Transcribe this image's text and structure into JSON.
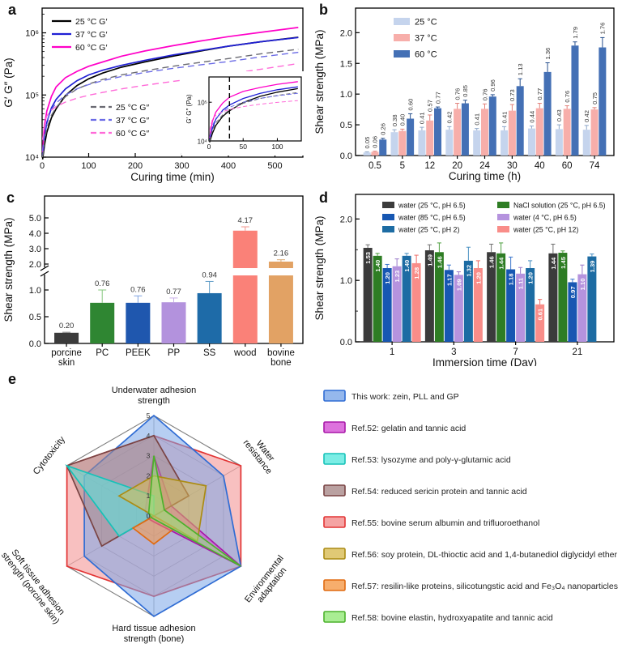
{
  "panels": [
    {
      "label": "a"
    },
    {
      "label": "b"
    },
    {
      "label": "c"
    },
    {
      "label": "d"
    },
    {
      "label": "e"
    }
  ],
  "chart_data": [
    {
      "panel": "a",
      "type": "line",
      "xlabel": "Curing time (min)",
      "ylabel": "G′ G″ (Pa)",
      "xlim": [
        0,
        560
      ],
      "xticks": [
        0,
        100,
        200,
        300,
        400,
        500
      ],
      "ylog": true,
      "ylim": [
        10000,
        2500000
      ],
      "ytick_labels": [
        "10⁴",
        "10⁵",
        "10⁶"
      ],
      "legend_solid": [
        "25 °C G′",
        "37 °C G′",
        "60 °C G′"
      ],
      "legend_dashed": [
        "25 °C G″",
        "37 °C G″",
        "60 °C G″"
      ],
      "series": [
        {
          "name": "25 °C G′",
          "color": "#000000",
          "dashed": false,
          "points": [
            [
              1,
              9200
            ],
            [
              5,
              15500
            ],
            [
              10,
              25000
            ],
            [
              20,
              43000
            ],
            [
              30,
              60000
            ],
            [
              50,
              98000
            ],
            [
              75,
              142000
            ],
            [
              100,
              182000
            ],
            [
              130,
              225000
            ],
            [
              170,
              280000
            ],
            [
              220,
              340000
            ],
            [
              280,
              420000
            ],
            [
              340,
              510000
            ],
            [
              400,
              610000
            ],
            [
              470,
              720000
            ],
            [
              550,
              850000
            ]
          ]
        },
        {
          "name": "37 °C G′",
          "color": "#1f1fd4",
          "dashed": false,
          "points": [
            [
              1,
              10500
            ],
            [
              5,
              21000
            ],
            [
              10,
              36000
            ],
            [
              20,
              62000
            ],
            [
              30,
              85000
            ],
            [
              50,
              125000
            ],
            [
              75,
              170000
            ],
            [
              100,
              210000
            ],
            [
              130,
              250000
            ],
            [
              170,
              300000
            ],
            [
              220,
              360000
            ],
            [
              280,
              440000
            ],
            [
              340,
              520000
            ],
            [
              400,
              610000
            ],
            [
              470,
              720000
            ],
            [
              550,
              840000
            ]
          ]
        },
        {
          "name": "60 °C G′",
          "color": "#ff00c8",
          "dashed": false,
          "points": [
            [
              1,
              12000
            ],
            [
              5,
              32000
            ],
            [
              10,
              55000
            ],
            [
              20,
              95000
            ],
            [
              30,
              135000
            ],
            [
              50,
              190000
            ],
            [
              75,
              240000
            ],
            [
              100,
              290000
            ],
            [
              130,
              340000
            ],
            [
              170,
              420000
            ],
            [
              220,
              510000
            ],
            [
              280,
              620000
            ],
            [
              340,
              740000
            ],
            [
              400,
              870000
            ],
            [
              470,
              1020000
            ],
            [
              550,
              1220000
            ]
          ]
        },
        {
          "name": "25 °C G″",
          "color": "#6a6a72",
          "dashed": true,
          "points": [
            [
              1,
              10000
            ],
            [
              5,
              18500
            ],
            [
              10,
              29000
            ],
            [
              20,
              47000
            ],
            [
              30,
              63000
            ],
            [
              50,
              94000
            ],
            [
              75,
              125000
            ],
            [
              100,
              150000
            ],
            [
              130,
              178000
            ],
            [
              170,
              210000
            ],
            [
              220,
              245000
            ],
            [
              280,
              290000
            ],
            [
              340,
              335000
            ],
            [
              400,
              385000
            ],
            [
              470,
              460000
            ],
            [
              550,
              545000
            ]
          ]
        },
        {
          "name": "37 °C G″",
          "color": "#6b6be6",
          "dashed": true,
          "points": [
            [
              1,
              12500
            ],
            [
              5,
              25000
            ],
            [
              10,
              38000
            ],
            [
              20,
              58000
            ],
            [
              30,
              74000
            ],
            [
              50,
              100000
            ],
            [
              75,
              126000
            ],
            [
              100,
              147000
            ],
            [
              130,
              170000
            ],
            [
              170,
              198000
            ],
            [
              220,
              230000
            ],
            [
              280,
              268000
            ],
            [
              340,
              305000
            ],
            [
              400,
              345000
            ],
            [
              470,
              410000
            ],
            [
              550,
              485000
            ]
          ]
        },
        {
          "name": "60 °C G″",
          "color": "#ff6ad8",
          "dashed": true,
          "points": [
            [
              1,
              19000
            ],
            [
              5,
              36000
            ],
            [
              10,
              46000
            ],
            [
              20,
              57000
            ],
            [
              30,
              65000
            ],
            [
              50,
              77000
            ],
            [
              75,
              89000
            ],
            [
              100,
              99000
            ],
            [
              130,
              110000
            ],
            [
              170,
              125000
            ],
            [
              220,
              143000
            ],
            [
              280,
              165000
            ],
            [
              340,
              190000
            ],
            [
              400,
              218000
            ],
            [
              470,
              260000
            ],
            [
              550,
              320000
            ]
          ]
        }
      ],
      "inset": {
        "xticks": [
          0,
          50,
          100
        ],
        "ytick_labels": [
          "10⁴",
          "10⁵"
        ],
        "ylabel": "G′ G″ (Pa)",
        "vline_x": 30,
        "xmax": 135
      }
    },
    {
      "panel": "b",
      "type": "bar",
      "categories": [
        "0.5",
        "5",
        "12",
        "20",
        "24",
        "30",
        "40",
        "60",
        "74"
      ],
      "xlabel": "Curing time (h)",
      "ylabel": "Shear strength (MPa)",
      "ylim": [
        0,
        2.4
      ],
      "yticks": [
        0,
        0.5,
        1,
        1.5,
        2
      ],
      "ytick_labels": [
        "0.0",
        "0.5",
        "1.0",
        "1.5",
        "2.0"
      ],
      "series": [
        {
          "name": "25 °C",
          "color": "#c5d4ed",
          "err_color": "#8fa8c9",
          "values": [
            0.05,
            0.38,
            0.41,
            0.42,
            0.41,
            0.41,
            0.44,
            0.43,
            0.42
          ],
          "errors": [
            0.01,
            0.04,
            0.05,
            0.05,
            0.03,
            0.06,
            0.04,
            0.07,
            0.07
          ]
        },
        {
          "name": "37 °C",
          "color": "#f7aeaa",
          "err_color": "#e2817a",
          "values": [
            0.06,
            0.4,
            0.57,
            0.76,
            0.76,
            0.73,
            0.77,
            0.76,
            0.75
          ],
          "errors": [
            0.01,
            0.03,
            0.09,
            0.09,
            0.08,
            0.1,
            0.08,
            0.05,
            0.03
          ]
        },
        {
          "name": "60 °C",
          "color": "#4470b5",
          "err_color": "#27508d",
          "values": [
            0.26,
            0.6,
            0.77,
            0.85,
            0.96,
            1.13,
            1.36,
            1.79,
            1.76
          ],
          "errors": [
            0.02,
            0.08,
            0.02,
            0.05,
            0.03,
            0.12,
            0.15,
            0.06,
            0.16
          ]
        }
      ]
    },
    {
      "panel": "c",
      "type": "bar-broken",
      "categories": [
        [
          "porcine",
          "skin"
        ],
        [
          "PC"
        ],
        [
          "PEEK"
        ],
        [
          "PP"
        ],
        [
          "SS"
        ],
        [
          "wood"
        ],
        [
          "bovine",
          "bone"
        ]
      ],
      "values": [
        0.2,
        0.76,
        0.76,
        0.77,
        0.94,
        4.17,
        2.16
      ],
      "errors": [
        0.01,
        0.24,
        0.13,
        0.08,
        0.22,
        0.25,
        0.12
      ],
      "value_labels": [
        "0.20",
        "0.76",
        "0.76",
        "0.77",
        "0.94",
        "4.17",
        "2.16"
      ],
      "colors": [
        "#3b3b3b",
        "#2f8632",
        "#1f57ae",
        "#b392dd",
        "#1e6ba8",
        "#fa8178",
        "#e2a264"
      ],
      "err_colors": [
        "#8a8a8a",
        "#86c77c",
        "#7fa3e0",
        "#c9aee8",
        "#5e9cc6",
        "#f2958d",
        "#d8a873"
      ],
      "ylabel": "Shear strength (MPa)",
      "lower_ticks": [
        0,
        0.5,
        1
      ],
      "lower_tick_labels": [
        "0.0",
        "0.5",
        "1.0"
      ],
      "upper_ticks": [
        2,
        3,
        4,
        5
      ],
      "upper_tick_labels": [
        "2.0",
        "3.0",
        "4.0",
        "5.0"
      ]
    },
    {
      "panel": "d",
      "type": "bar",
      "categories": [
        "1",
        "3",
        "7",
        "21"
      ],
      "xlabel": "Immersion time (Day)",
      "ylabel": "Shear strength (MPa)",
      "ylim": [
        0,
        2.4
      ],
      "yticks": [
        0,
        1,
        2
      ],
      "ytick_labels": [
        "0.0",
        "1.0",
        "2.0"
      ],
      "labels_inside": true,
      "series": [
        {
          "name": "water (25 °C, pH 6.5)",
          "color": "#3b3b3b",
          "err_color": "#6f6f6f",
          "values": [
            1.53,
            1.49,
            1.46,
            1.44
          ],
          "errors": [
            0.05,
            0.09,
            0.13,
            0.15
          ]
        },
        {
          "name": "NaCl solution (25 °C, pH 6.5)",
          "color": "#2e7d24",
          "err_color": "#4f9f40",
          "values": [
            1.4,
            1.46,
            1.44,
            1.45
          ],
          "errors": [
            0.04,
            0.15,
            0.17,
            0.03
          ]
        },
        {
          "name": "water (85 °C, pH 6.5)",
          "color": "#1757b2",
          "err_color": "#3c77cc",
          "values": [
            1.2,
            1.17,
            1.18,
            0.97
          ],
          "errors": [
            0.06,
            0.08,
            0.2,
            0.05
          ]
        },
        {
          "name": "water (4 °C, pH 6.5)",
          "color": "#b593de",
          "err_color": "#9a79c9",
          "values": [
            1.23,
            1.09,
            1.11,
            1.1
          ],
          "errors": [
            0.12,
            0.05,
            0.1,
            0.15
          ]
        },
        {
          "name": "water (25 °C, pH 2)",
          "color": "#1d6ca3",
          "err_color": "#4a90c2",
          "values": [
            1.4,
            1.32,
            1.2,
            1.39
          ],
          "errors": [
            0.04,
            0.22,
            0.12,
            0.04
          ]
        },
        {
          "name": "water (25 °C, pH 12)",
          "color": "#f98d89",
          "err_color": "#ef6a64",
          "values": [
            1.28,
            1.2,
            0.61,
            null
          ],
          "errors": [
            0.13,
            0.12,
            0.08,
            null
          ]
        }
      ],
      "legend_columns": [
        [
          0,
          2,
          4
        ],
        [
          1,
          3,
          5
        ]
      ]
    },
    {
      "panel": "e",
      "type": "radar",
      "axes": [
        [
          "Underwater adhesion",
          "strength"
        ],
        [
          "Water",
          "resistance"
        ],
        [
          "Environmental",
          "adaptation"
        ],
        [
          "Hard tissue adhesion",
          "strength (bone)"
        ],
        [
          "Soft tissue adhesion",
          "strength (porcine skin)"
        ],
        [
          "Cytotoxicity"
        ]
      ],
      "ticks": [
        0,
        1,
        2,
        3,
        4,
        5
      ],
      "rmax": 5,
      "series": [
        {
          "name": "This work: zein, PLL and GP",
          "fill": "#7aa6e8",
          "stroke": "#2f6cd4",
          "values": [
            5,
            4,
            5,
            5,
            4,
            4
          ]
        },
        {
          "name": "Ref.52: gelatin and tannic acid",
          "fill": "#d44fd4",
          "stroke": "#a818a8",
          "values": [
            3,
            1,
            5,
            0.3,
            0.3,
            0.5
          ]
        },
        {
          "name": "Ref.53: lysozyme and poly-γ-glutamic acid",
          "fill": "#5ae8de",
          "stroke": "#16c2b8",
          "values": [
            1,
            0,
            0,
            0,
            2,
            5
          ]
        },
        {
          "name": "Ref.54: reduced sericin protein and tannic acid",
          "fill": "#a98a8a",
          "stroke": "#7a4444",
          "values": [
            4,
            2,
            0,
            0,
            3,
            5
          ]
        },
        {
          "name": "Ref.55: bovine serum albumin and trifluoroethanol",
          "fill": "#f28c8c",
          "stroke": "#e23434",
          "values": [
            4,
            5,
            5,
            4,
            5,
            5
          ]
        },
        {
          "name": "Ref.56: soy protein, DL-thioctic acid and 1,4-butanediol diglycidyl ether",
          "fill": "#d8bc52",
          "stroke": "#ab8c14",
          "values": [
            2,
            3,
            2.5,
            0,
            0,
            2
          ]
        },
        {
          "name": "Ref.57: resilin-like proteins, silicotungstic acid and Fe₃O₄ nanoparticles",
          "fill": "#f59a48",
          "stroke": "#e06a10",
          "values": [
            0,
            0,
            1.2,
            1.4,
            1.2,
            0
          ]
        },
        {
          "name": "Ref.58: bovine elastin, hydroxyapatite and tannic acid",
          "fill": "#94e878",
          "stroke": "#4cb22c",
          "values": [
            3,
            0.6,
            5,
            0.15,
            0.15,
            0.3
          ]
        }
      ],
      "z_order": [
        4,
        0,
        1,
        3,
        2,
        5,
        6,
        7
      ]
    }
  ]
}
